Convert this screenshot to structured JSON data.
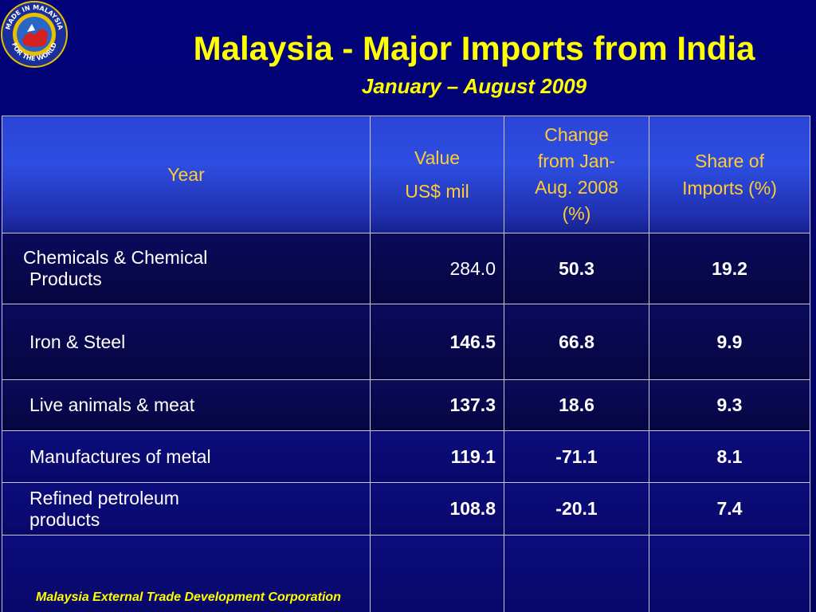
{
  "header": {
    "title": "Malaysia - Major Imports from India",
    "subtitle": "January – August 2009",
    "logo": {
      "icon": "made-in-malaysia-logo",
      "text_top": "MADE IN MALAYSIA",
      "text_bottom": "FOR THE WORLD",
      "colors": {
        "ring": "#1b2f9c",
        "inner": "#e8c000",
        "accent": "#d42020"
      }
    }
  },
  "table": {
    "columns": {
      "year": "Year",
      "value_line1": "Value",
      "value_line2": "US$ mil",
      "change_line1": "Change",
      "change_line2": "from Jan-",
      "change_line3": "Aug. 2008",
      "change_line4": "(%)",
      "share_line1": "Share of",
      "share_line2": "Imports (%)"
    },
    "rows": [
      {
        "product_line1": "Chemicals & Chemical",
        "product_line2": "Products",
        "value": "284.0",
        "change": "50.3",
        "share": "19.2"
      },
      {
        "product": "Iron & Steel",
        "value": "146.5",
        "change": "66.8",
        "share": "9.9"
      },
      {
        "product": "Live animals & meat",
        "value": "137.3",
        "change": "18.6",
        "share": "9.3"
      },
      {
        "product": "Manufactures of metal",
        "value": "119.1",
        "change": "-71.1",
        "share": "8.1"
      },
      {
        "product_line1": "Refined petroleum",
        "product_line2": "products",
        "value": "108.8",
        "change": "-20.1",
        "share": "7.4"
      }
    ]
  },
  "footer": {
    "org": "Malaysia External Trade Development Corporation"
  },
  "colors": {
    "background": "#00006e",
    "title": "#ffff00",
    "header_text": "#ffcc33",
    "value_text": "#ffff99"
  }
}
